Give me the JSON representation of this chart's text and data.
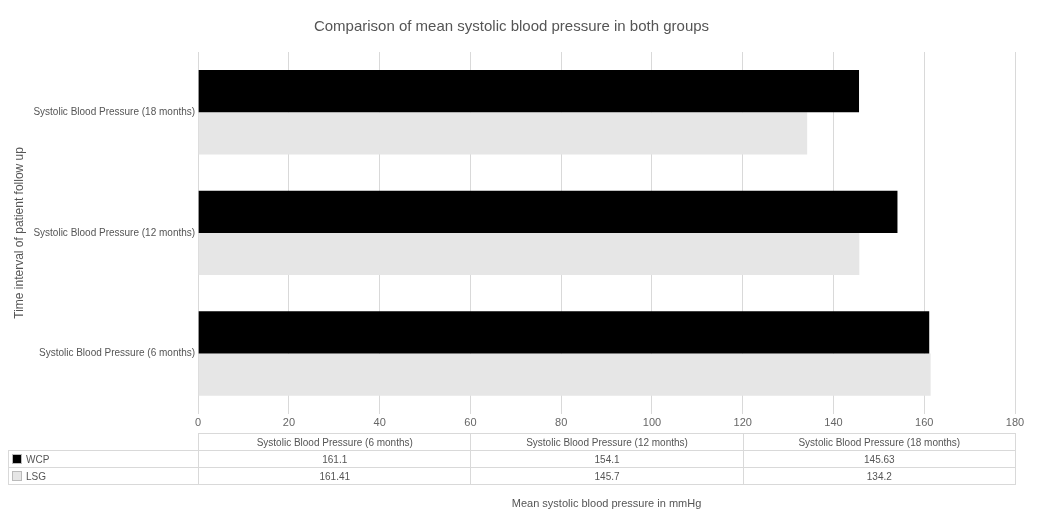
{
  "chart_data": [
    {
      "type": "bar",
      "orientation": "horizontal",
      "title": "Comparison of mean systolic blood pressure in both groups",
      "ylabel": "Time interval of patient follow up",
      "categories": [
        "Systolic Blood Pressure (18 months)",
        "Systolic Blood Pressure (12 months)",
        "Systolic Blood Pressure (6 months)"
      ],
      "series": [
        {
          "name": "WCP",
          "color": "#000000",
          "values": [
            145.63,
            154.1,
            161.1
          ]
        },
        {
          "name": "LSG",
          "color": "#e6e6e6",
          "values": [
            134.2,
            145.7,
            161.41
          ]
        }
      ],
      "xlim": [
        0,
        180
      ],
      "xticks": [
        0,
        20,
        40,
        60,
        80,
        100,
        120,
        140,
        160,
        180
      ],
      "grid": "x",
      "legend": "bottom",
      "annotations": [
        "Mean systolic blood pressure in mmHg"
      ]
    },
    {
      "type": "other",
      "categories": [
        "Systolic Blood Pressure (6 months)",
        "Systolic Blood Pressure (12 months)",
        "Systolic Blood Pressure (18 months)"
      ],
      "cell_labels": [
        [
          "161.1",
          "154.1",
          "145.63"
        ],
        [
          "161.41",
          "145.7",
          "134.2"
        ]
      ]
    }
  ]
}
